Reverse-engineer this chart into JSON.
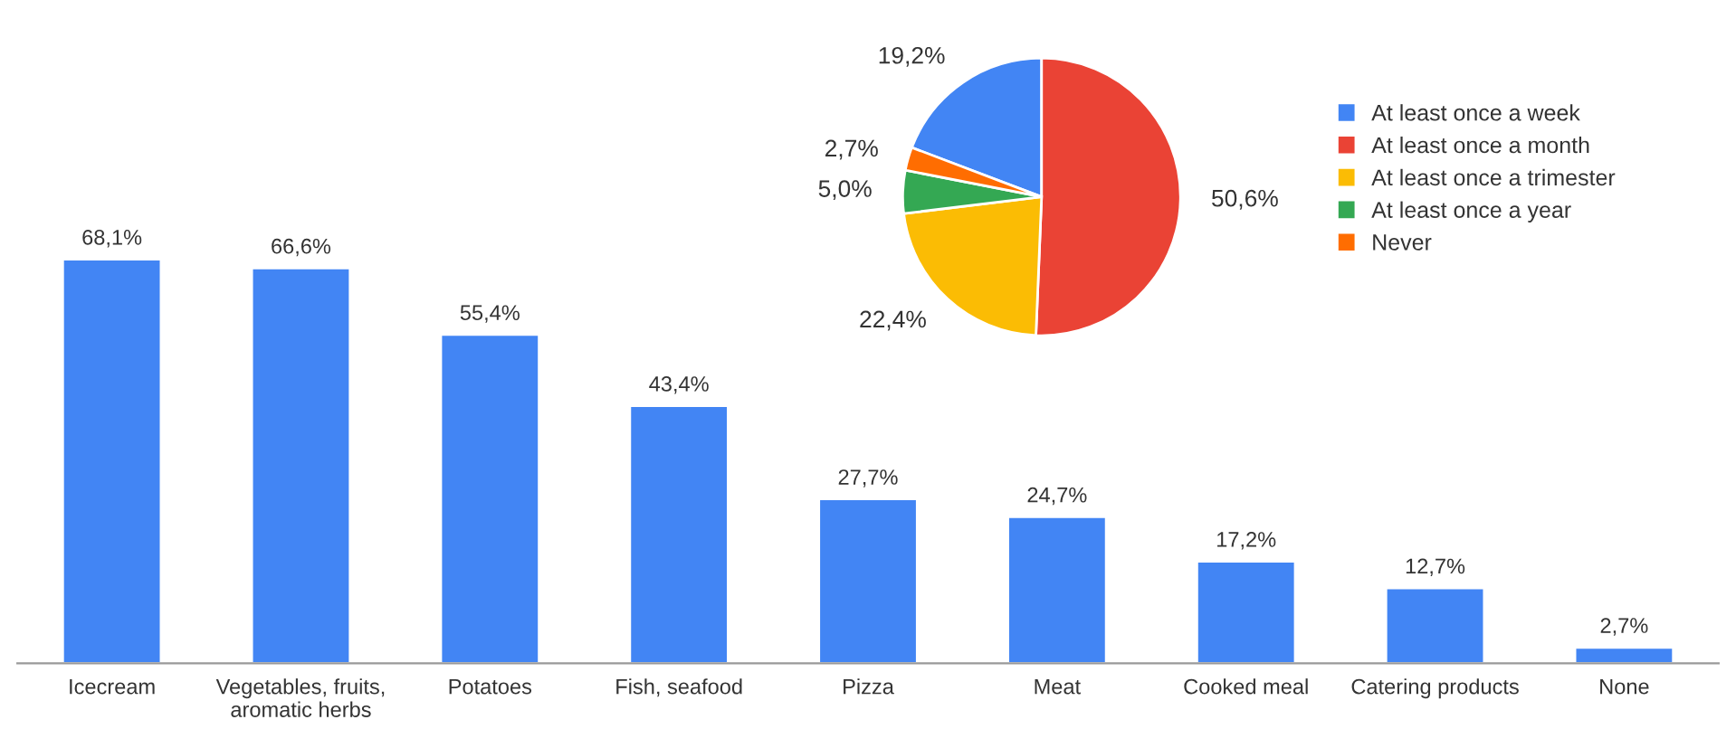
{
  "chart_data": [
    {
      "type": "bar",
      "categories": [
        "Icecream",
        "Vegetables, fruits, aromatic herbs",
        "Potatoes",
        "Fish, seafood",
        "Pizza",
        "Meat",
        "Cooked meal",
        "Catering products",
        "None"
      ],
      "values": [
        68.1,
        66.6,
        55.4,
        43.4,
        27.7,
        24.7,
        17.2,
        12.7,
        2.7
      ],
      "value_labels": [
        "68,1%",
        "66,6%",
        "55,4%",
        "43,4%",
        "27,7%",
        "24,7%",
        "17,2%",
        "12,7%",
        "2,7%"
      ],
      "color": "#4285f4",
      "grid": false
    },
    {
      "type": "pie",
      "categories": [
        "At least once a week",
        "At least once a month",
        "At least once a trimester",
        "At least once a year",
        "Never"
      ],
      "values": [
        19.2,
        50.6,
        22.4,
        5.0,
        2.7
      ],
      "value_labels": [
        "19,2%",
        "50,6%",
        "22,4%",
        "5,0%",
        "2,7%"
      ],
      "colors": [
        "#4285f4",
        "#ea4335",
        "#fbbc04",
        "#34a853",
        "#ff6d01"
      ],
      "legend": "right"
    }
  ]
}
